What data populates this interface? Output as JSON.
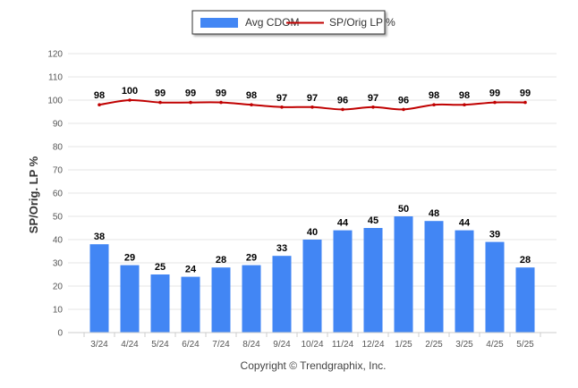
{
  "chart_data": {
    "type": "bar",
    "categories": [
      "3/24",
      "4/24",
      "5/24",
      "6/24",
      "7/24",
      "8/24",
      "9/24",
      "10/24",
      "11/24",
      "12/24",
      "1/25",
      "2/25",
      "3/25",
      "4/25",
      "5/25"
    ],
    "series": [
      {
        "name": "Avg CDOM",
        "type": "bar",
        "color": "#4286f4",
        "values": [
          38,
          29,
          25,
          24,
          28,
          29,
          33,
          40,
          44,
          45,
          50,
          48,
          44,
          39,
          28
        ]
      },
      {
        "name": "SP/Orig LP %",
        "type": "line",
        "color": "#c00000",
        "values": [
          98,
          100,
          99,
          99,
          99,
          98,
          97,
          97,
          96,
          97,
          96,
          98,
          98,
          99,
          99
        ]
      }
    ],
    "ylabel": "SP/Orig. LP %",
    "xlabel": "",
    "ylim": [
      0,
      120
    ],
    "yticks": [
      0,
      10,
      20,
      30,
      40,
      50,
      60,
      70,
      80,
      90,
      100,
      110,
      120
    ],
    "grid": true,
    "legend_position": "top-center"
  },
  "footer": {
    "copyright": "Copyright © Trendgraphix, Inc."
  }
}
